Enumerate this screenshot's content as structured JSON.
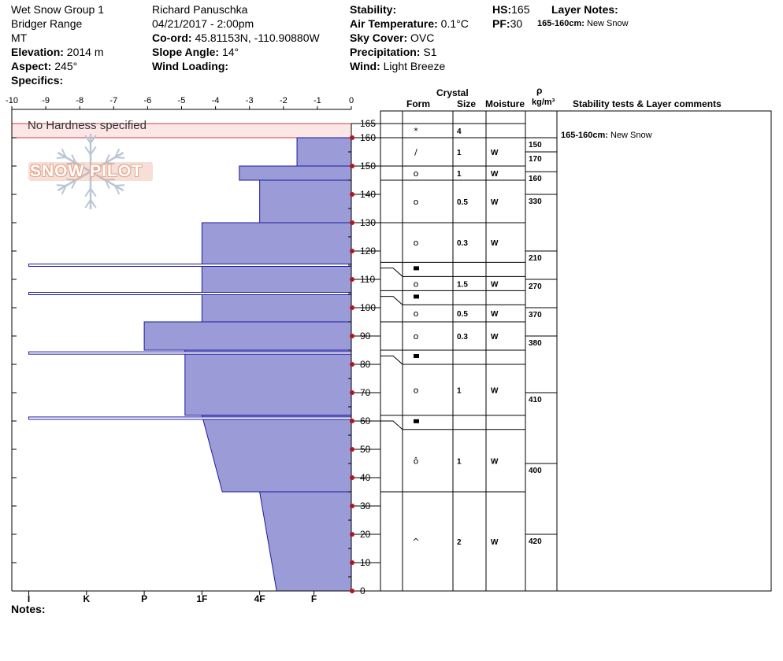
{
  "header": {
    "group": "Wet Snow Group 1",
    "range": "Bridger Range",
    "state": "MT",
    "elevation_label": "Elevation:",
    "elevation_value": "2014 m",
    "aspect_label": "Aspect:",
    "aspect_value": "245°",
    "specifics_label": "Specifics:",
    "observer": "Richard Panuschka",
    "datetime": "04/21/2017 - 2:00pm",
    "coord_label": "Co-ord:",
    "coord_value": "45.81153N, -110.90880W",
    "slope_label": "Slope Angle:",
    "slope_value": "14°",
    "wind_loading_label": "Wind Loading:",
    "stability_label": "Stability:",
    "air_temp_label": "Air Temperature:",
    "air_temp_value": "0.1°C",
    "sky_label": "Sky Cover:",
    "sky_value": "OVC",
    "precip_label": "Precipitation:",
    "precip_value": "S1",
    "wind_label": "Wind:",
    "wind_value": "Light Breeze",
    "hs_label": "HS:",
    "hs_value": "165",
    "pf_label": "PF:",
    "pf_value": "30",
    "layer_notes_label": "Layer Notes:",
    "layer_note_depth": "165-160cm:",
    "layer_note_text": "New Snow"
  },
  "columns": {
    "crystal": "Crystal",
    "form": "Form",
    "size": "Size",
    "moisture": "Moisture",
    "rho": "ρ",
    "density_unit": "kg/m³",
    "stability": "Stability tests & Layer comments"
  },
  "comment": {
    "depth": "165-160cm:",
    "text": "New Snow"
  },
  "notes_label": "Notes:",
  "no_hardness": "No Hardness specified",
  "logo_text": "SNOW PILOT",
  "colors": {
    "profile_fill": "#9b9bd8",
    "profile_edge": "#1a1aa0",
    "marker": "#b01818",
    "no_hardness_fill": "#fde6e6",
    "no_hardness_edge": "#d04040",
    "logo_tint": "#e6a48a"
  },
  "chart_data": {
    "type": "snow-profile",
    "total_depth": 165,
    "depth_unit": "cm",
    "force_axis": {
      "min": -10,
      "max": 0,
      "ticks": [
        -10,
        -9,
        -8,
        -7,
        -6,
        -5,
        -4,
        -3,
        -2,
        -1,
        0
      ]
    },
    "hardness_ticks": [
      "I",
      "K",
      "P",
      "1F",
      "4F",
      "F"
    ],
    "hardness_tick_force": [
      -9.5,
      -7.8,
      -6.1,
      -4.4,
      -2.7,
      -1.1
    ],
    "depth_ticks": [
      0,
      10,
      20,
      30,
      40,
      50,
      60,
      70,
      80,
      90,
      100,
      110,
      120,
      130,
      140,
      150,
      160,
      165
    ],
    "no_hardness_layer": {
      "top": 165,
      "bottom": 160
    },
    "hardness_profile": [
      {
        "top": 160,
        "bottom": 150,
        "force": -1.6
      },
      {
        "top": 150,
        "bottom": 145,
        "force": -3.3
      },
      {
        "top": 145,
        "bottom": 130,
        "force": -2.7
      },
      {
        "top": 130,
        "bottom": 95,
        "force": -4.4
      },
      {
        "top": 95,
        "bottom": 85,
        "force": -6.1
      },
      {
        "top": 85,
        "bottom": 62,
        "force": -4.9
      },
      {
        "top": 62,
        "bottom": 35,
        "force_top": -4.4,
        "force_bottom": -3.8
      },
      {
        "top": 35,
        "bottom": 0,
        "force_top": -2.7,
        "force_bottom": -2.2
      }
    ],
    "thin_layers": [
      {
        "depth": 115,
        "force": -9.5
      },
      {
        "depth": 105,
        "force": -9.5
      },
      {
        "depth": 84,
        "force": -9.5
      },
      {
        "depth": 61,
        "force": -9.5
      }
    ],
    "layers": [
      {
        "top": 165,
        "bottom": 160,
        "form": "*",
        "size": "4",
        "moisture": ""
      },
      {
        "top": 160,
        "bottom": 150,
        "form": "/",
        "size": "1",
        "moisture": "W"
      },
      {
        "top": 150,
        "bottom": 145,
        "form": "o",
        "size": "1",
        "moisture": "W"
      },
      {
        "top": 145,
        "bottom": 130,
        "form": "o",
        "size": "0.5",
        "moisture": "W"
      },
      {
        "top": 130,
        "bottom": 116,
        "form": "o",
        "size": "0.3",
        "moisture": "W"
      },
      {
        "top": 116,
        "bottom": 114,
        "form": "■",
        "size": "",
        "moisture": ""
      },
      {
        "top": 114,
        "bottom": 106,
        "form": "o",
        "size": "1.5",
        "moisture": "W"
      },
      {
        "top": 106,
        "bottom": 104,
        "form": "■",
        "size": "",
        "moisture": ""
      },
      {
        "top": 104,
        "bottom": 95,
        "form": "o",
        "size": "0.5",
        "moisture": "W"
      },
      {
        "top": 95,
        "bottom": 85,
        "form": "o",
        "size": "0.3",
        "moisture": "W"
      },
      {
        "top": 85,
        "bottom": 83,
        "form": "■",
        "size": "",
        "moisture": ""
      },
      {
        "top": 83,
        "bottom": 62,
        "form": "o",
        "size": "1",
        "moisture": "W"
      },
      {
        "top": 62,
        "bottom": 60,
        "form": "■",
        "size": "",
        "moisture": ""
      },
      {
        "top": 60,
        "bottom": 35,
        "form": "ô",
        "size": "1",
        "moisture": "W"
      },
      {
        "top": 35,
        "bottom": 0,
        "form": "^",
        "size": "2",
        "moisture": "W"
      }
    ],
    "density": [
      {
        "top": 160,
        "bottom": 155,
        "value": "150"
      },
      {
        "top": 155,
        "bottom": 148,
        "value": "170"
      },
      {
        "top": 148,
        "bottom": 140,
        "value": "160"
      },
      {
        "top": 140,
        "bottom": 120,
        "value": "330"
      },
      {
        "top": 120,
        "bottom": 110,
        "value": "210"
      },
      {
        "top": 110,
        "bottom": 100,
        "value": "270"
      },
      {
        "top": 100,
        "bottom": 90,
        "value": "370"
      },
      {
        "top": 90,
        "bottom": 70,
        "value": "380"
      },
      {
        "top": 70,
        "bottom": 45,
        "value": "410"
      },
      {
        "top": 45,
        "bottom": 20,
        "value": "400"
      },
      {
        "top": 20,
        "bottom": 0,
        "value": "420"
      }
    ]
  }
}
